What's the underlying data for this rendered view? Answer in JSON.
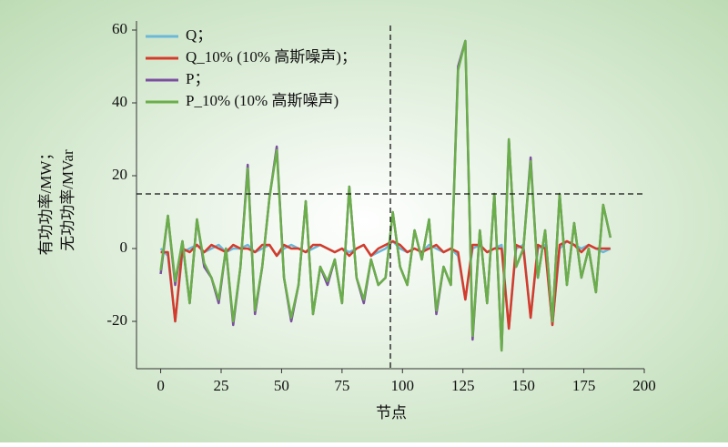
{
  "chart_data": {
    "type": "line",
    "x_label": "节点",
    "y_label": [
      "有功功率/MW；",
      "无功功率/MVar"
    ],
    "x": [
      0,
      3,
      6,
      9,
      12,
      15,
      18,
      21,
      24,
      27,
      30,
      33,
      36,
      39,
      42,
      45,
      48,
      51,
      54,
      57,
      60,
      63,
      66,
      69,
      72,
      75,
      78,
      81,
      84,
      87,
      90,
      93,
      96,
      99,
      102,
      105,
      108,
      111,
      114,
      117,
      120,
      123,
      126,
      129,
      132,
      135,
      138,
      141,
      144,
      147,
      150,
      153,
      156,
      159,
      162,
      165,
      168,
      171,
      174,
      177,
      180,
      183,
      186
    ],
    "series": [
      {
        "name": "Q；",
        "color": "#6bb8d8",
        "values": [
          0,
          -2,
          -20,
          -1,
          0,
          1,
          -1,
          0,
          1,
          -1,
          0,
          0,
          1,
          -1,
          0,
          1,
          -2,
          0,
          1,
          0,
          -1,
          0,
          1,
          0,
          -1,
          0,
          -1,
          0,
          1,
          -2,
          -1,
          0,
          2,
          0,
          -1,
          0,
          -1,
          1,
          0,
          -1,
          0,
          -2,
          -14,
          0,
          1,
          -1,
          0,
          1,
          -22,
          0,
          1,
          -19,
          0,
          1,
          -21,
          0,
          2,
          1,
          0,
          1,
          0,
          -1,
          0
        ]
      },
      {
        "name": "Q_10% (10% 高斯噪声)；",
        "color": "#d63a2a",
        "values": [
          -1,
          -1,
          -20,
          0,
          -1,
          1,
          -1,
          1,
          0,
          -1,
          1,
          0,
          0,
          -1,
          1,
          1,
          -2,
          1,
          0,
          0,
          -1,
          1,
          1,
          0,
          -1,
          0,
          -2,
          0,
          1,
          -2,
          0,
          1,
          2,
          1,
          -1,
          0,
          -1,
          0,
          1,
          -1,
          0,
          -1,
          -14,
          1,
          1,
          -1,
          0,
          0,
          -22,
          1,
          0,
          -19,
          1,
          0,
          -21,
          1,
          2,
          1,
          -1,
          1,
          0,
          0,
          0
        ]
      },
      {
        "name": "P；",
        "color": "#7b4fa0",
        "values": [
          -7,
          9,
          -10,
          2,
          -15,
          8,
          -5,
          -8,
          -15,
          0,
          -21,
          -5,
          23,
          -18,
          -5,
          14,
          28,
          -8,
          -20,
          -10,
          13,
          -18,
          -5,
          -10,
          -3,
          -15,
          17,
          -8,
          -15,
          -3,
          -10,
          -8,
          10,
          -5,
          -10,
          5,
          -3,
          8,
          -18,
          -5,
          -10,
          50,
          57,
          -25,
          5,
          -15,
          15,
          -28,
          30,
          -5,
          0,
          25,
          -8,
          5,
          -20,
          15,
          -10,
          7,
          -8,
          0,
          -12,
          12,
          3
        ]
      },
      {
        "name": "P_10% (10% 高斯噪声)",
        "color": "#6aae4a",
        "values": [
          -6,
          9,
          -9,
          2,
          -15,
          8,
          -4,
          -8,
          -14,
          0,
          -20,
          -5,
          22,
          -17,
          -5,
          14,
          27,
          -8,
          -19,
          -10,
          13,
          -18,
          -5,
          -9,
          -3,
          -15,
          17,
          -8,
          -14,
          -3,
          -10,
          -8,
          10,
          -5,
          -10,
          5,
          -3,
          8,
          -17,
          -5,
          -10,
          49,
          57,
          -24,
          5,
          -15,
          15,
          -28,
          30,
          -5,
          0,
          24,
          -8,
          5,
          -20,
          15,
          -10,
          7,
          -8,
          0,
          -12,
          12,
          3
        ]
      }
    ],
    "xlim": [
      -10,
      200
    ],
    "xticks": [
      0,
      25,
      50,
      75,
      100,
      125,
      150,
      175,
      200
    ],
    "ylim": [
      -33,
      60
    ],
    "yticks": [
      -20,
      0,
      20,
      40,
      60
    ],
    "vline": 95,
    "hline": 15
  }
}
